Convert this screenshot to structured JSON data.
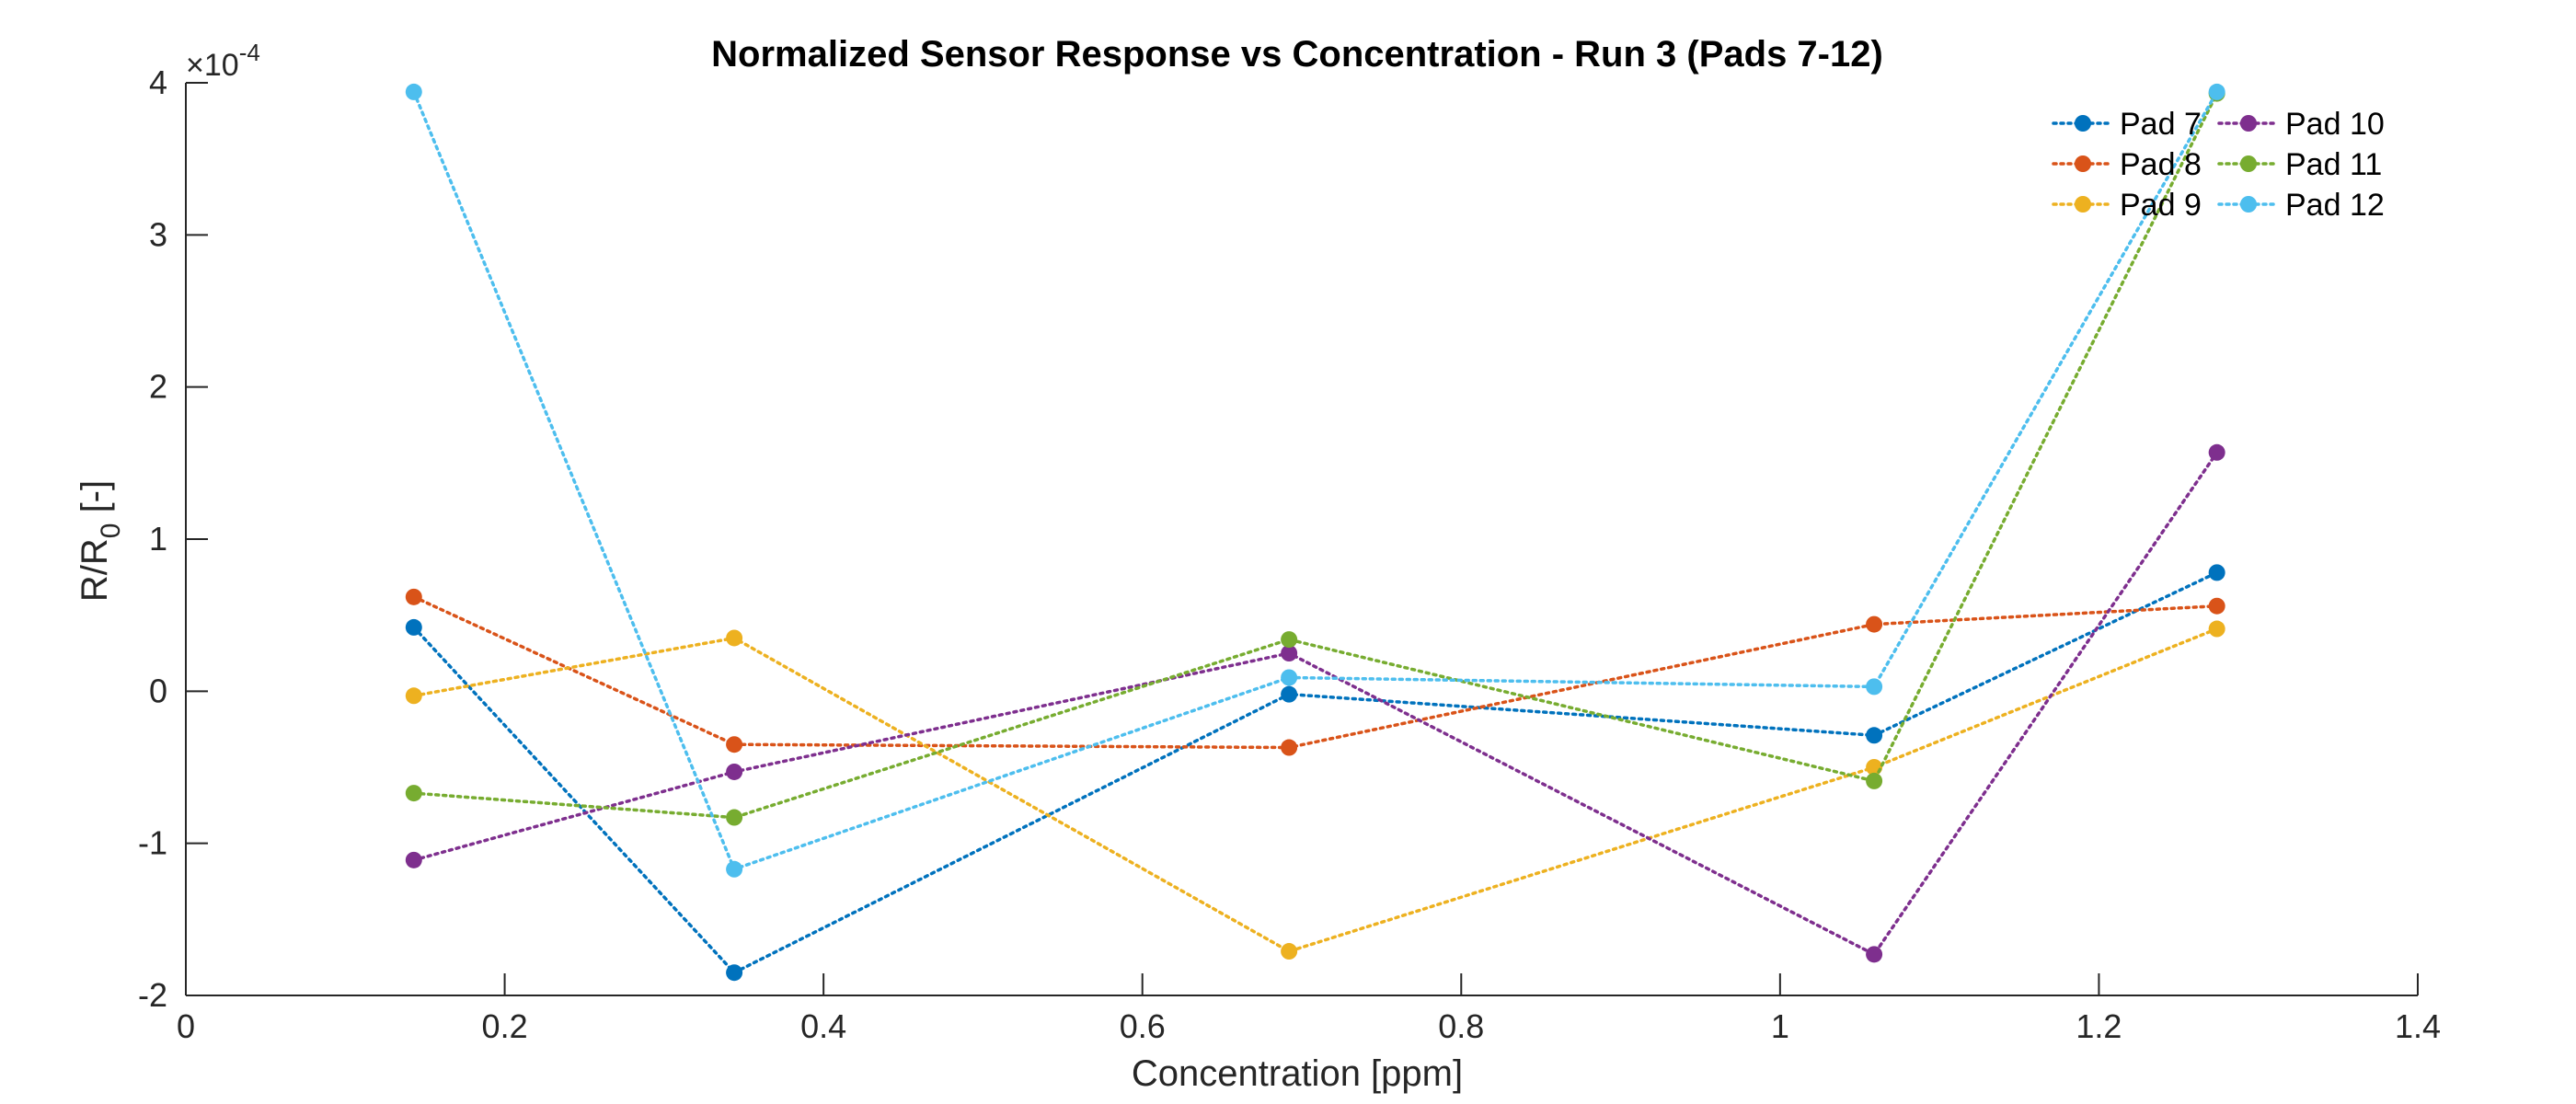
{
  "chart_data": {
    "type": "line",
    "title": "Normalized Sensor Response vs Concentration - Run 3 (Pads 7-12)",
    "xlabel": "Concentration [ppm]",
    "ylabel_main": "R/R",
    "ylabel_sub": "0",
    "ylabel_tail": " [-]",
    "y_multiplier_base": "×10",
    "y_multiplier_exp": "-4",
    "xlim": [
      0,
      1.4
    ],
    "ylim": [
      -2,
      4
    ],
    "xticks": [
      0,
      0.2,
      0.4,
      0.6,
      0.8,
      1,
      1.2,
      1.4
    ],
    "yticks": [
      -2,
      -1,
      0,
      1,
      2,
      3,
      4
    ],
    "xtick_labels": [
      "0",
      "0.2",
      "0.4",
      "0.6",
      "0.8",
      "1",
      "1.2",
      "1.4"
    ],
    "ytick_labels": [
      "-2",
      "-1",
      "0",
      "1",
      "2",
      "3",
      "4"
    ],
    "x": [
      0.143,
      0.344,
      0.692,
      1.059,
      1.274
    ],
    "legend_position": "top-right",
    "grid": false,
    "line_style": "dotted",
    "series": [
      {
        "name": "Pad 7",
        "color": "#0072BD",
        "values": [
          0.42,
          -1.85,
          -0.02,
          -0.29,
          0.78
        ]
      },
      {
        "name": "Pad 8",
        "color": "#D95319",
        "values": [
          0.62,
          -0.35,
          -0.37,
          0.44,
          0.56
        ]
      },
      {
        "name": "Pad 9",
        "color": "#EDB120",
        "values": [
          -0.03,
          0.35,
          -1.71,
          -0.5,
          0.41
        ]
      },
      {
        "name": "Pad 10",
        "color": "#7E2F8E",
        "values": [
          -1.11,
          -0.53,
          0.25,
          -1.73,
          1.57
        ]
      },
      {
        "name": "Pad 11",
        "color": "#77AC30",
        "values": [
          -0.67,
          -0.83,
          0.34,
          -0.59,
          3.93
        ]
      },
      {
        "name": "Pad 12",
        "color": "#4DBEEE",
        "values": [
          3.94,
          -1.17,
          0.09,
          0.03,
          3.94
        ]
      }
    ]
  }
}
